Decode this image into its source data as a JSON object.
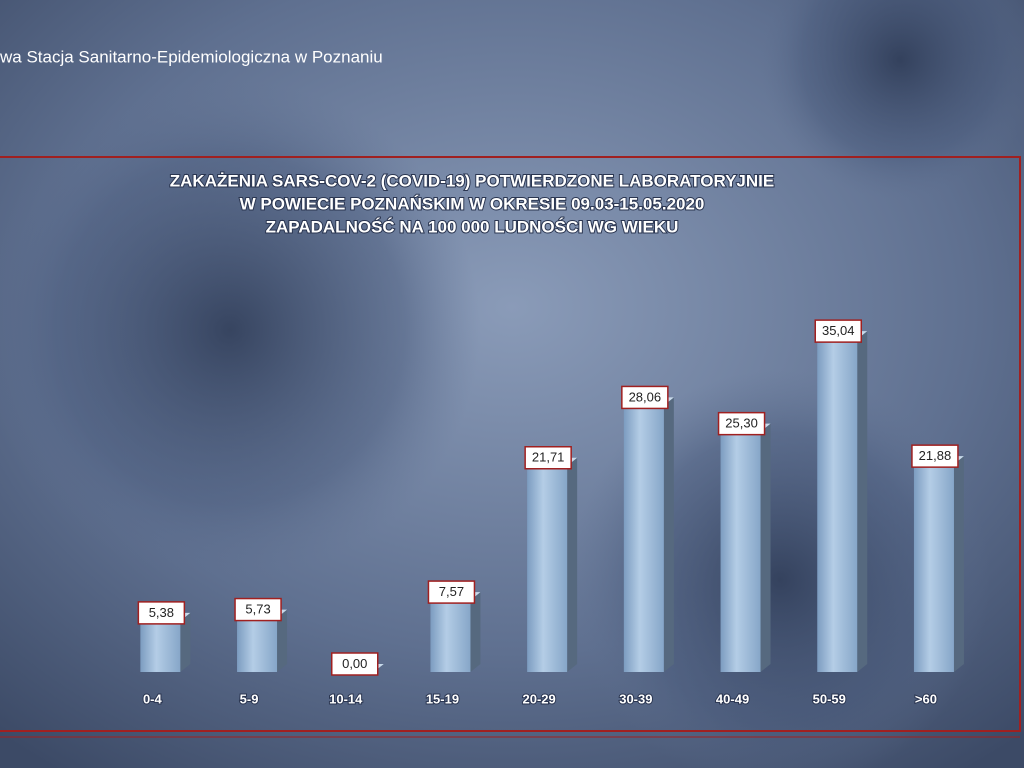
{
  "header": {
    "text": "wa Stacja Sanitarno-Epidemiologiczna w Poznaniu"
  },
  "chart_data": {
    "type": "bar3d",
    "title": [
      "ZAKAŻENIA SARS-COV-2 (COVID-19) POTWIERDZONE LABORATORYJNIE",
      "W POWIECIE POZNAŃSKIM W OKRESIE 09.03-15.05.2020",
      "ZAPADALNOŚĆ NA 100 000 LUDNOŚCI WG WIEKU"
    ],
    "categories": [
      "0-4",
      "5-9",
      "10-14",
      "15-19",
      "20-29",
      "30-39",
      "40-49",
      "50-59",
      ">60"
    ],
    "values": [
      5.38,
      5.73,
      0.0,
      7.57,
      21.71,
      28.06,
      25.3,
      35.04,
      21.88
    ],
    "value_labels": [
      "5,38",
      "5,73",
      "0,00",
      "7,57",
      "21,71",
      "28,06",
      "25,30",
      "35,04",
      "21,88"
    ],
    "color": "#9dbbdc"
  }
}
